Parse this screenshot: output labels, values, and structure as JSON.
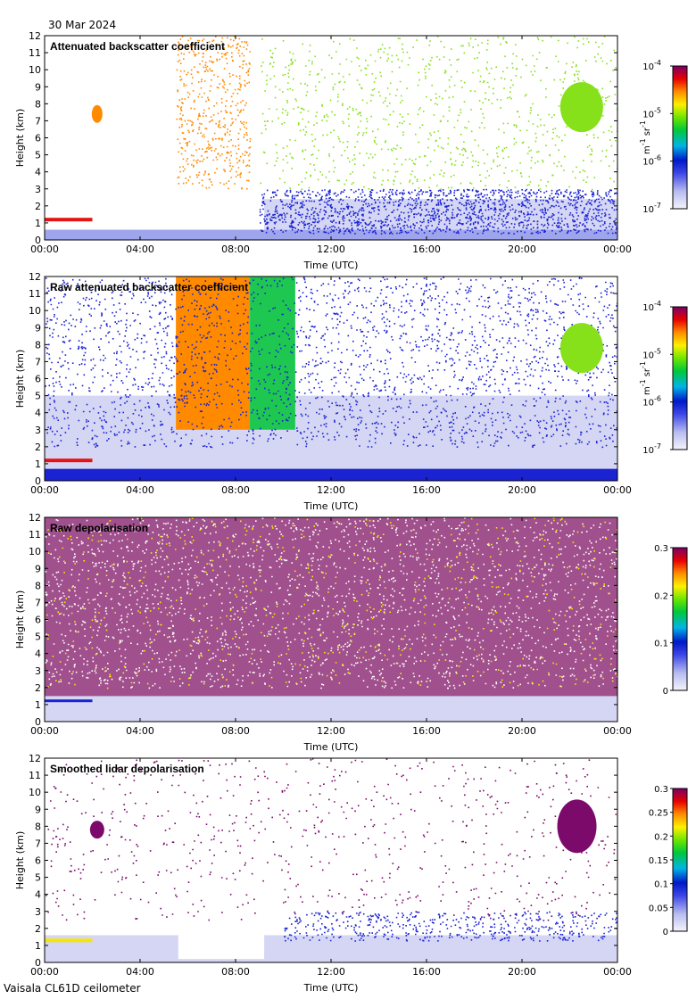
{
  "date": "30 Mar 2024",
  "footer": "Vaisala CL61D ceilometer",
  "chart_data": [
    {
      "type": "heatmap",
      "title": "Attenuated backscatter coefficient",
      "xlabel": "Time (UTC)",
      "ylabel": "Height (km)",
      "xticks": [
        "00:00",
        "04:00",
        "08:00",
        "12:00",
        "16:00",
        "20:00",
        "00:00"
      ],
      "yticks": [
        "0",
        "1",
        "2",
        "3",
        "4",
        "5",
        "6",
        "7",
        "8",
        "9",
        "10",
        "11",
        "12"
      ],
      "xlim_hours": [
        0,
        24
      ],
      "ylim_km": [
        0,
        12
      ],
      "colorbar": {
        "scale": "log",
        "unit_base": "m",
        "unit_base_exp": "-1",
        "unit_second": "sr",
        "unit_second_exp": "-1",
        "ticks": [
          {
            "base": "10",
            "exp": "-7"
          },
          {
            "base": "10",
            "exp": "-6"
          },
          {
            "base": "10",
            "exp": "-5"
          },
          {
            "base": "10",
            "exp": "-4"
          }
        ]
      }
    },
    {
      "type": "heatmap",
      "title": "Raw attenuated backscatter coefficient",
      "xlabel": "Time (UTC)",
      "ylabel": "Height (km)",
      "xticks": [
        "00:00",
        "04:00",
        "08:00",
        "12:00",
        "16:00",
        "20:00",
        "00:00"
      ],
      "yticks": [
        "0",
        "1",
        "2",
        "3",
        "4",
        "5",
        "6",
        "7",
        "8",
        "9",
        "10",
        "11",
        "12"
      ],
      "xlim_hours": [
        0,
        24
      ],
      "ylim_km": [
        0,
        12
      ],
      "colorbar": {
        "scale": "log",
        "unit_base": "m",
        "unit_base_exp": "-1",
        "unit_second": "sr",
        "unit_second_exp": "-1",
        "ticks": [
          {
            "base": "10",
            "exp": "-7"
          },
          {
            "base": "10",
            "exp": "-6"
          },
          {
            "base": "10",
            "exp": "-5"
          },
          {
            "base": "10",
            "exp": "-4"
          }
        ]
      }
    },
    {
      "type": "heatmap",
      "title": "Raw depolarisation",
      "xlabel": "Time (UTC)",
      "ylabel": "Height (km)",
      "xticks": [
        "00:00",
        "04:00",
        "08:00",
        "12:00",
        "16:00",
        "20:00",
        "00:00"
      ],
      "yticks": [
        "0",
        "1",
        "2",
        "3",
        "4",
        "5",
        "6",
        "7",
        "8",
        "9",
        "10",
        "11",
        "12"
      ],
      "xlim_hours": [
        0,
        24
      ],
      "ylim_km": [
        0,
        12
      ],
      "colorbar": {
        "scale": "linear",
        "range": [
          0,
          0.3
        ],
        "ticks": [
          "0",
          "0.1",
          "0.2",
          "0.3"
        ]
      }
    },
    {
      "type": "heatmap",
      "title": "Smoothed lidar depolarisation",
      "xlabel": "Time (UTC)",
      "ylabel": "Height (km)",
      "xticks": [
        "00:00",
        "04:00",
        "08:00",
        "12:00",
        "16:00",
        "20:00",
        "00:00"
      ],
      "yticks": [
        "0",
        "1",
        "2",
        "3",
        "4",
        "5",
        "6",
        "7",
        "8",
        "9",
        "10",
        "11",
        "12"
      ],
      "xlim_hours": [
        0,
        24
      ],
      "ylim_km": [
        0,
        12
      ],
      "colorbar": {
        "scale": "linear",
        "range": [
          0,
          0.3
        ],
        "ticks": [
          "0",
          "0.05",
          "0.1",
          "0.15",
          "0.2",
          "0.25",
          "0.3"
        ]
      }
    }
  ]
}
